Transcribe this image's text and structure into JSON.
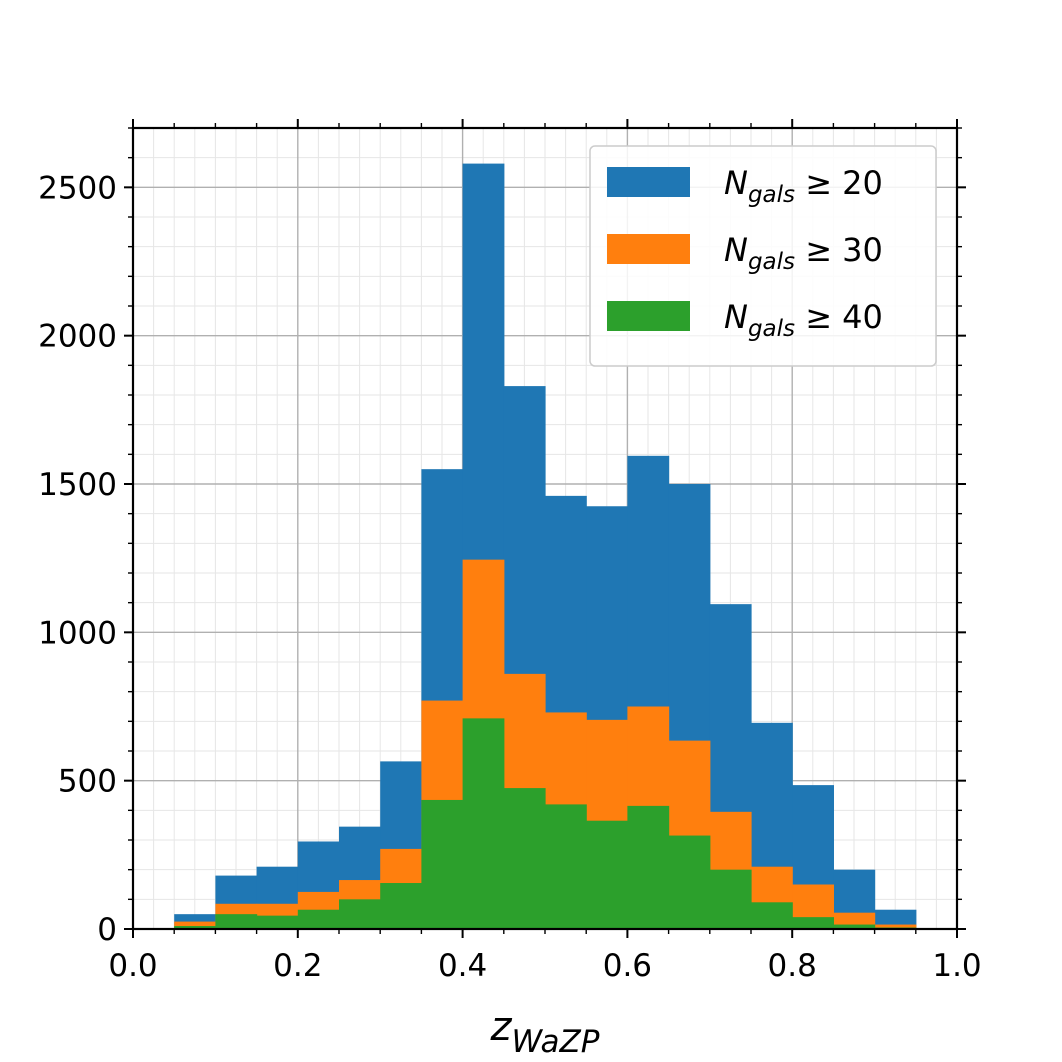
{
  "chart_data": {
    "type": "bar",
    "bin_edges": [
      0.05,
      0.1,
      0.15,
      0.2,
      0.25,
      0.3,
      0.35,
      0.4,
      0.45,
      0.5,
      0.55,
      0.6,
      0.65,
      0.7,
      0.75,
      0.8,
      0.85,
      0.9,
      0.95
    ],
    "series": [
      {
        "name": "N_gals ≥ 20",
        "legend_main": "N",
        "legend_sub": "gals",
        "legend_rest": " ≥ 20",
        "color": "#1f77b4",
        "values": [
          50,
          180,
          210,
          295,
          345,
          565,
          1550,
          2580,
          1830,
          1460,
          1425,
          1595,
          1500,
          1095,
          695,
          485,
          200,
          65
        ]
      },
      {
        "name": "N_gals ≥ 30",
        "legend_main": "N",
        "legend_sub": "gals",
        "legend_rest": " ≥ 30",
        "color": "#ff7f0e",
        "values": [
          25,
          85,
          85,
          125,
          165,
          270,
          770,
          1245,
          860,
          730,
          705,
          750,
          635,
          395,
          210,
          150,
          55,
          15
        ]
      },
      {
        "name": "N_gals ≥ 40",
        "legend_main": "N",
        "legend_sub": "gals",
        "legend_rest": " ≥ 40",
        "color": "#2ca02c",
        "values": [
          10,
          50,
          45,
          65,
          100,
          155,
          435,
          710,
          475,
          420,
          365,
          415,
          315,
          200,
          90,
          40,
          15,
          5
        ]
      }
    ],
    "xlim": [
      0.0,
      1.0
    ],
    "ylim": [
      0,
      2700
    ],
    "xticks": [
      "0.0",
      "0.2",
      "0.4",
      "0.6",
      "0.8",
      "1.0"
    ],
    "yticks": [
      "0",
      "500",
      "1000",
      "1500",
      "2000",
      "2500"
    ],
    "xlabel_main": "z",
    "xlabel_sub": "WaZP",
    "ylabel": "",
    "title": "",
    "grid": true,
    "legend_position": "top-right"
  }
}
